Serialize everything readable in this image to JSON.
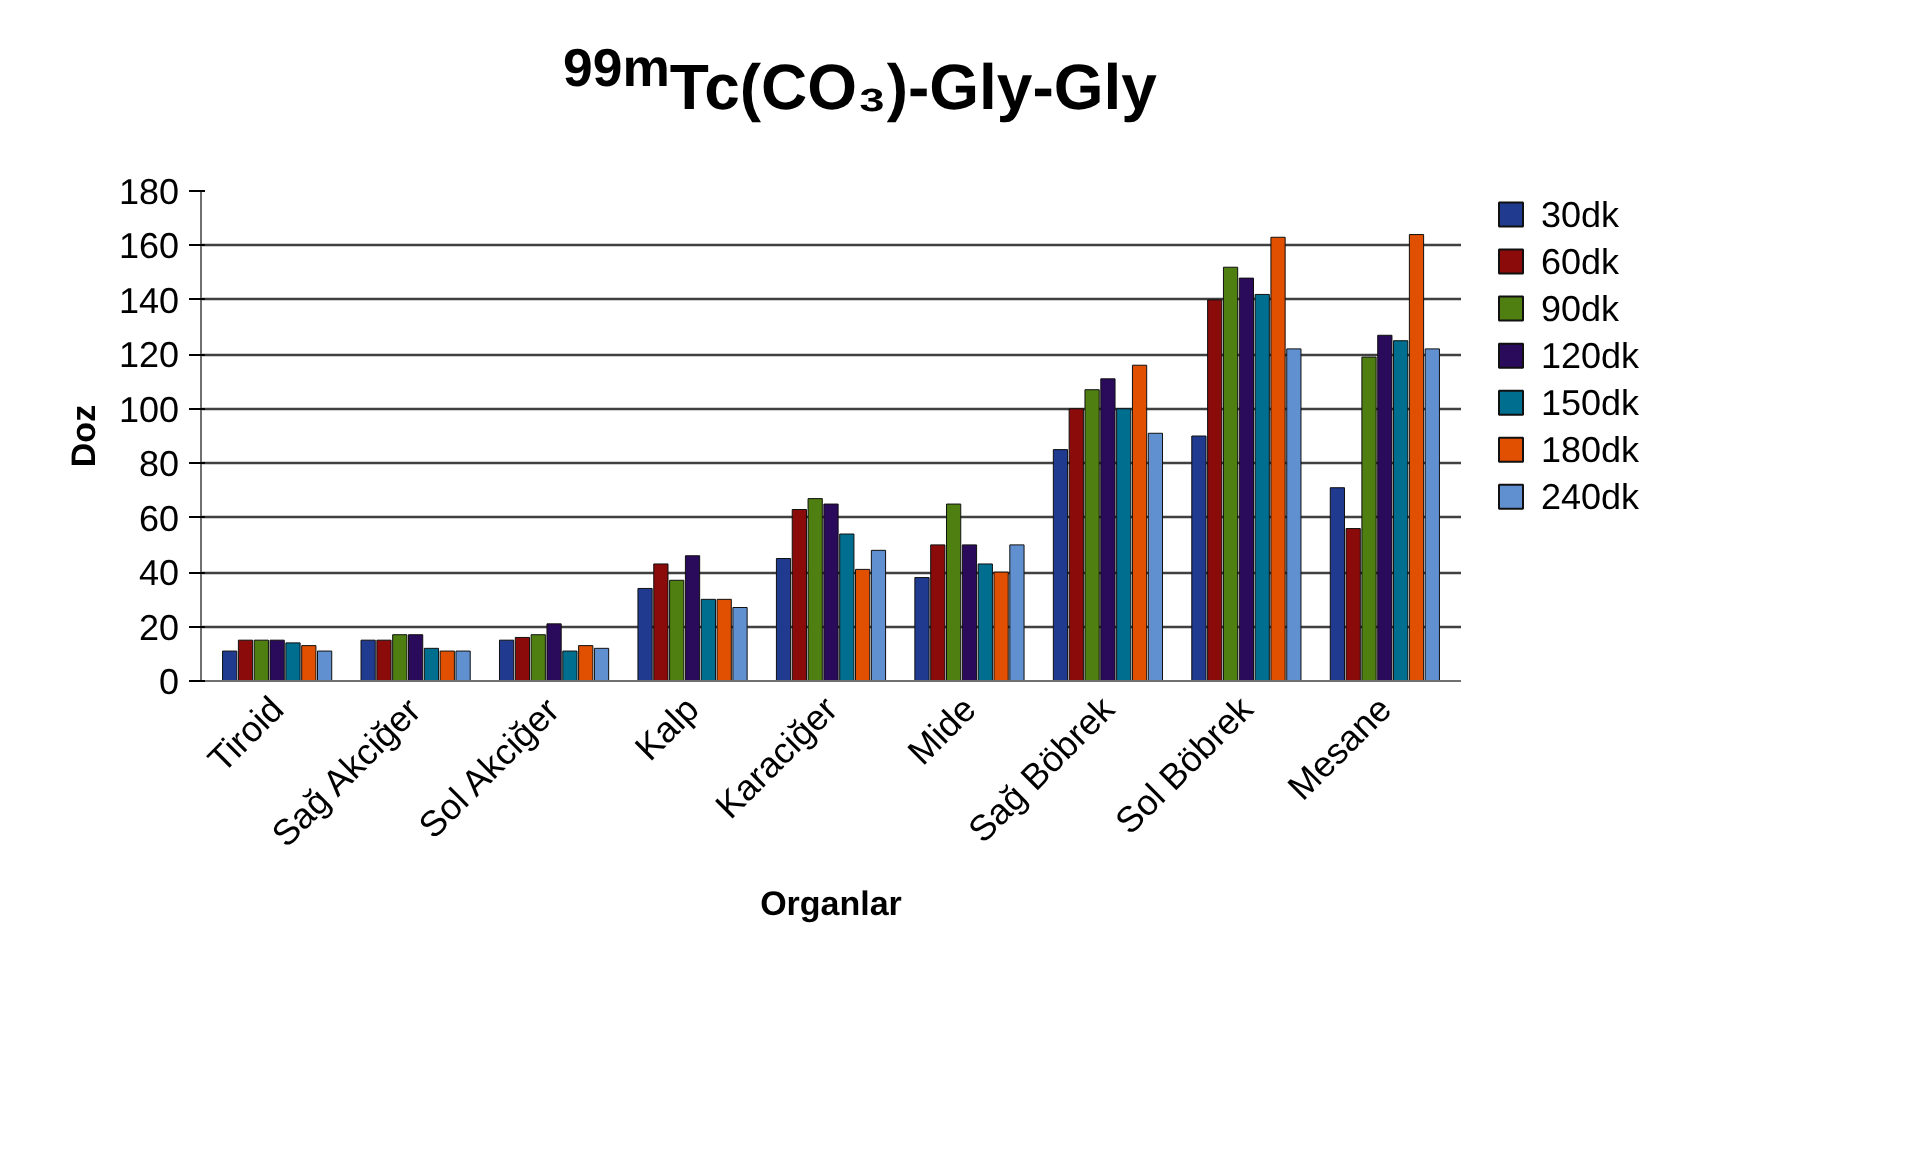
{
  "chart_data": {
    "type": "bar",
    "title": "$^{99m}$Tc(CO₃)-Gly-Gly",
    "xlabel": "Organlar",
    "ylabel": "Doz",
    "categories": [
      "Tiroid",
      "Sağ Akciğer",
      "Sol Akciğer",
      "Kalp",
      "Karaciğer",
      "Mide",
      "Sağ Böbrek",
      "Sol Böbrek",
      "Mesane"
    ],
    "series": [
      {
        "name": "30dk",
        "color": "#1f3a8f",
        "values": [
          11,
          15,
          15,
          34,
          45,
          38,
          85,
          90,
          71
        ]
      },
      {
        "name": "60dk",
        "color": "#8b0a0a",
        "values": [
          15,
          15,
          16,
          43,
          63,
          50,
          100,
          140,
          56
        ]
      },
      {
        "name": "90dk",
        "color": "#4f7f10",
        "values": [
          15,
          17,
          17,
          37,
          67,
          65,
          107,
          152,
          119
        ]
      },
      {
        "name": "120dk",
        "color": "#2a0a5a",
        "values": [
          15,
          17,
          21,
          46,
          65,
          50,
          111,
          148,
          127
        ]
      },
      {
        "name": "150dk",
        "color": "#006e8f",
        "values": [
          14,
          12,
          11,
          30,
          54,
          43,
          100,
          142,
          125
        ]
      },
      {
        "name": "180dk",
        "color": "#e05000",
        "values": [
          13,
          11,
          13,
          30,
          41,
          40,
          116,
          163,
          164
        ]
      },
      {
        "name": "240dk",
        "color": "#6090d0",
        "values": [
          11,
          11,
          12,
          27,
          48,
          50,
          91,
          122,
          122
        ]
      }
    ],
    "ylim": [
      0,
      180
    ],
    "yticks": [
      0,
      20,
      40,
      60,
      80,
      100,
      120,
      140,
      160,
      180
    ],
    "grid": "y",
    "legend": "right"
  }
}
